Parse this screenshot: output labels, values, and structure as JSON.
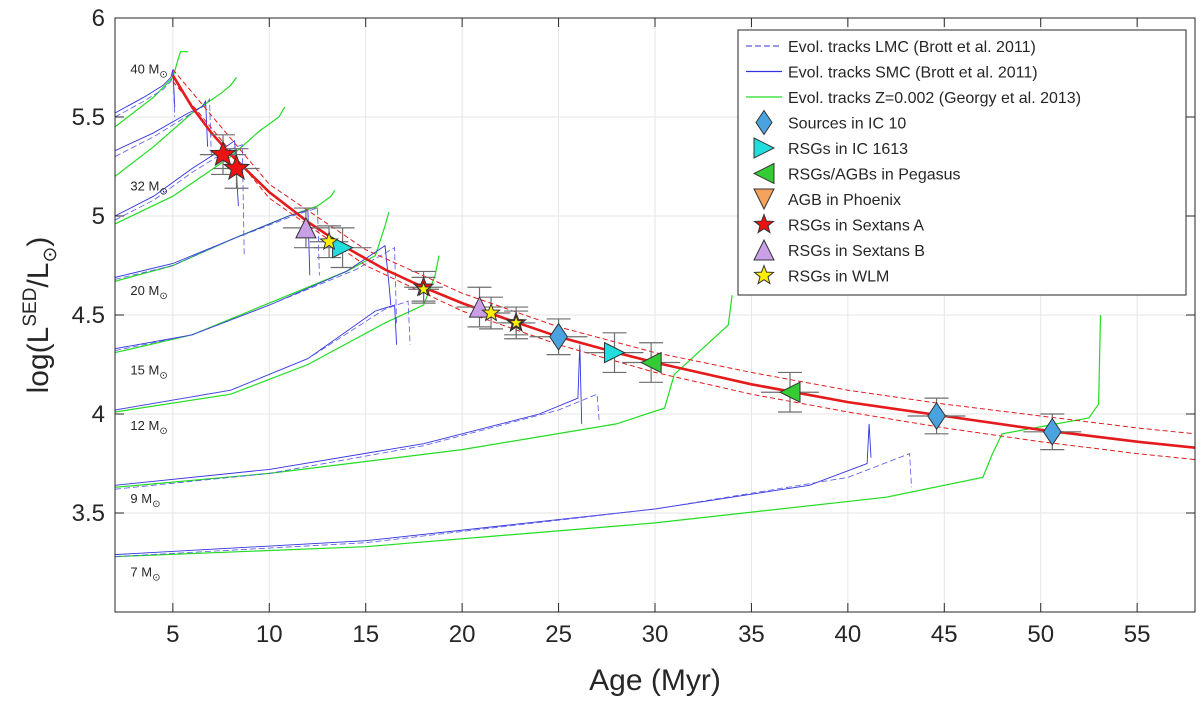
{
  "chart_data": {
    "type": "scatter",
    "title": "",
    "xlabel": "Age (Myr)",
    "ylabel_parts": {
      "main": "log(L",
      "sup": "SED",
      "sep": "/L",
      "sub": "⊙",
      "close": ")"
    },
    "xlim": [
      2,
      58
    ],
    "ylim": [
      3,
      6
    ],
    "x_ticks": [
      5,
      10,
      15,
      20,
      25,
      30,
      35,
      40,
      45,
      50,
      55
    ],
    "y_ticks": [
      3.5,
      4,
      4.5,
      5,
      5.5,
      6
    ],
    "y_tick_labels": [
      "3.5",
      "4",
      "4.5",
      "5",
      "5.5",
      "6"
    ],
    "grid": true,
    "legend_position": "top-right",
    "fit_curve": {
      "name": "",
      "color": "#e41a1c",
      "x": [
        5,
        6,
        7,
        8,
        10,
        12,
        14,
        16,
        18,
        20,
        22,
        25,
        28,
        30,
        35,
        40,
        45,
        50,
        55,
        58
      ],
      "y": [
        5.71,
        5.55,
        5.42,
        5.31,
        5.12,
        4.97,
        4.84,
        4.73,
        4.64,
        4.56,
        4.49,
        4.39,
        4.31,
        4.26,
        4.15,
        4.06,
        3.99,
        3.92,
        3.86,
        3.83
      ]
    },
    "fit_upper": {
      "x": [
        5,
        10,
        15,
        20,
        25,
        30,
        35,
        40,
        45,
        50,
        55,
        58
      ],
      "y": [
        5.74,
        5.16,
        4.83,
        4.61,
        4.44,
        4.31,
        4.21,
        4.12,
        4.05,
        3.99,
        3.93,
        3.9
      ]
    },
    "fit_lower": {
      "x": [
        5,
        10,
        15,
        20,
        25,
        30,
        35,
        40,
        45,
        50,
        55,
        58
      ],
      "y": [
        5.68,
        5.09,
        4.75,
        4.52,
        4.35,
        4.21,
        4.1,
        4.01,
        3.93,
        3.86,
        3.8,
        3.77
      ]
    },
    "mass_labels": [
      {
        "text": "40 M",
        "sub": "⊙",
        "x": 2.8,
        "y": 5.72
      },
      {
        "text": "32 M",
        "sub": "⊙",
        "x": 2.8,
        "y": 5.13
      },
      {
        "text": "20 M",
        "sub": "⊙",
        "x": 2.8,
        "y": 4.6
      },
      {
        "text": "15 M",
        "sub": "⊙",
        "x": 2.8,
        "y": 4.2
      },
      {
        "text": "12 M",
        "sub": "⊙",
        "x": 2.8,
        "y": 3.92
      },
      {
        "text": "9 M",
        "sub": "⊙",
        "x": 2.8,
        "y": 3.55
      },
      {
        "text": "7 M",
        "sub": "⊙",
        "x": 2.8,
        "y": 3.18
      }
    ],
    "tracks_green": [
      {
        "x": [
          2,
          4,
          5,
          5.3,
          5.4,
          5.8
        ],
        "y": [
          5.45,
          5.6,
          5.7,
          5.8,
          5.83,
          5.83
        ]
      },
      {
        "x": [
          2,
          4,
          6,
          7.5,
          8,
          8.3
        ],
        "y": [
          5.2,
          5.35,
          5.52,
          5.62,
          5.66,
          5.7
        ]
      },
      {
        "x": [
          2,
          5,
          8,
          9.5,
          10.5,
          10.8
        ],
        "y": [
          4.96,
          5.1,
          5.3,
          5.43,
          5.5,
          5.55
        ]
      },
      {
        "x": [
          2,
          5,
          8,
          11,
          12.5,
          13.2,
          13.4
        ],
        "y": [
          4.67,
          4.75,
          4.88,
          5.0,
          5.05,
          5.1,
          5.13
        ]
      },
      {
        "x": [
          2,
          6,
          10,
          14,
          15.5,
          16,
          16.2
        ],
        "y": [
          4.31,
          4.4,
          4.56,
          4.72,
          4.8,
          4.95,
          5.02
        ]
      },
      {
        "x": [
          2,
          8,
          12,
          16,
          18,
          18.6,
          18.8
        ],
        "y": [
          4.01,
          4.1,
          4.25,
          4.46,
          4.55,
          4.7,
          4.8
        ]
      },
      {
        "x": [
          2,
          10,
          20,
          28,
          30.5,
          31,
          33.8,
          34
        ],
        "y": [
          3.63,
          3.7,
          3.82,
          3.95,
          4.03,
          4.2,
          4.45,
          4.6
        ]
      },
      {
        "x": [
          2,
          15,
          30,
          42,
          47,
          47.5,
          48,
          52.5,
          53,
          53.1
        ],
        "y": [
          3.28,
          3.33,
          3.45,
          3.58,
          3.68,
          3.8,
          3.9,
          3.98,
          4.05,
          4.5
        ]
      }
    ],
    "tracks_blue": [
      {
        "x": [
          2,
          3.5,
          4.5,
          4.9,
          5.0,
          5.1
        ],
        "y": [
          5.52,
          5.6,
          5.66,
          5.7,
          5.74,
          5.55
        ]
      },
      {
        "x": [
          2,
          4,
          5.8,
          6.5,
          6.7,
          6.8
        ],
        "y": [
          5.33,
          5.42,
          5.52,
          5.55,
          5.58,
          5.35
        ]
      },
      {
        "x": [
          2,
          4,
          6,
          7.6,
          8.2,
          8.4
        ],
        "y": [
          5.0,
          5.1,
          5.24,
          5.34,
          5.38,
          5.05
        ]
      },
      {
        "x": [
          2,
          5,
          8,
          11,
          12,
          12.1
        ],
        "y": [
          4.69,
          4.76,
          4.88,
          5.0,
          5.03,
          4.7
        ]
      },
      {
        "x": [
          2,
          6,
          10,
          14,
          16,
          16.2,
          16.3
        ],
        "y": [
          4.33,
          4.4,
          4.55,
          4.72,
          4.85,
          4.66,
          4.55
        ]
      },
      {
        "x": [
          2,
          8,
          12,
          15.5,
          16.5,
          16.6
        ],
        "y": [
          4.02,
          4.12,
          4.28,
          4.52,
          4.55,
          4.35
        ]
      },
      {
        "x": [
          2,
          10,
          18,
          24,
          26,
          26.1,
          26.2
        ],
        "y": [
          3.64,
          3.72,
          3.85,
          4.0,
          4.08,
          4.35,
          3.95
        ]
      },
      {
        "x": [
          2,
          15,
          30,
          38,
          41,
          41.1,
          41.2
        ],
        "y": [
          3.29,
          3.36,
          3.52,
          3.64,
          3.75,
          3.95,
          3.78
        ]
      }
    ],
    "tracks_blue_dashed": [
      {
        "x": [
          2,
          3.5,
          4.5,
          4.9,
          5.0,
          5.1
        ],
        "y": [
          5.5,
          5.58,
          5.64,
          5.68,
          5.72,
          5.5
        ]
      },
      {
        "x": [
          2,
          4,
          6,
          6.7,
          6.9,
          7.0
        ],
        "y": [
          5.3,
          5.4,
          5.52,
          5.56,
          5.59,
          5.3
        ]
      },
      {
        "x": [
          2,
          4,
          6,
          7.8,
          8.6,
          8.7
        ],
        "y": [
          4.98,
          5.08,
          5.22,
          5.33,
          5.36,
          4.8
        ]
      },
      {
        "x": [
          2,
          5,
          8,
          11.5,
          12.5,
          12.6
        ],
        "y": [
          4.68,
          4.75,
          4.88,
          5.01,
          5.04,
          4.7
        ]
      },
      {
        "x": [
          2,
          6,
          10,
          14.5,
          16.5,
          16.6
        ],
        "y": [
          4.32,
          4.4,
          4.55,
          4.73,
          4.84,
          4.45
        ]
      },
      {
        "x": [
          2,
          8,
          12,
          16,
          17.2,
          17.3
        ],
        "y": [
          4.02,
          4.12,
          4.28,
          4.53,
          4.57,
          4.35
        ]
      },
      {
        "x": [
          2,
          10,
          18,
          25,
          27,
          27.1
        ],
        "y": [
          3.62,
          3.7,
          3.84,
          4.02,
          4.1,
          3.97
        ]
      },
      {
        "x": [
          2,
          15,
          30,
          40,
          43.2,
          43.3
        ],
        "y": [
          3.28,
          3.35,
          3.52,
          3.68,
          3.8,
          3.63
        ]
      }
    ],
    "legend": [
      {
        "label": "Evol. tracks LMC (Brott et al. 2011)",
        "marker": "dash-line",
        "color": "#3333dd"
      },
      {
        "label": "Evol. tracks SMC (Brott et al. 2011)",
        "marker": "line",
        "color": "#3333dd"
      },
      {
        "label": "Evol. tracks Z=0.002 (Georgy et al. 2013)",
        "marker": "line",
        "color": "#22dd22"
      },
      {
        "label": "Sources in IC 10",
        "marker": "diamond",
        "color": "#4aa3df"
      },
      {
        "label": "RSGs in IC 1613",
        "marker": "triangle-right",
        "color": "#22dddd"
      },
      {
        "label": "RSGs/AGBs in Pegasus",
        "marker": "triangle-left",
        "color": "#33cc33"
      },
      {
        "label": "AGB in Phoenix",
        "marker": "triangle-down",
        "color": "#f5a25d"
      },
      {
        "label": "RSGs in Sextans A",
        "marker": "star",
        "color": "#ee1111"
      },
      {
        "label": "RSGs in Sextans B",
        "marker": "triangle-up",
        "color": "#c9a0e8"
      },
      {
        "label": "RSGs in WLM",
        "marker": "star",
        "color": "#ffee00"
      }
    ],
    "points": [
      {
        "series": "Sources in IC 10",
        "marker": "diamond",
        "color": "#4aa3df",
        "x": 25.0,
        "y": 4.39,
        "xerr": 1.5,
        "yerr": 0.09,
        "size": 22
      },
      {
        "series": "Sources in IC 10",
        "marker": "diamond",
        "color": "#4aa3df",
        "x": 44.6,
        "y": 3.99,
        "xerr": 1.5,
        "yerr": 0.09,
        "size": 22
      },
      {
        "series": "Sources in IC 10",
        "marker": "diamond",
        "color": "#4aa3df",
        "x": 50.6,
        "y": 3.91,
        "xerr": 1.5,
        "yerr": 0.09,
        "size": 22
      },
      {
        "series": "RSGs in IC 1613",
        "marker": "triangle-right",
        "color": "#22dddd",
        "x": 13.8,
        "y": 4.84,
        "xerr": 1.5,
        "yerr": 0.1,
        "size": 20
      },
      {
        "series": "RSGs in IC 1613",
        "marker": "triangle-right",
        "color": "#22dddd",
        "x": 27.9,
        "y": 4.31,
        "xerr": 1.5,
        "yerr": 0.1,
        "size": 20
      },
      {
        "series": "RSGs/AGBs in Pegasus",
        "marker": "triangle-left",
        "color": "#33cc33",
        "x": 29.8,
        "y": 4.26,
        "xerr": 1.5,
        "yerr": 0.1,
        "size": 20
      },
      {
        "series": "RSGs/AGBs in Pegasus",
        "marker": "triangle-left",
        "color": "#33cc33",
        "x": 37.0,
        "y": 4.11,
        "xerr": 1.5,
        "yerr": 0.1,
        "size": 20
      },
      {
        "series": "RSGs in Sextans A",
        "marker": "star",
        "color": "#ee1111",
        "x": 7.6,
        "y": 5.31,
        "xerr": 1.2,
        "yerr": 0.1,
        "size": 26
      },
      {
        "series": "RSGs in Sextans A",
        "marker": "star",
        "color": "#ee1111",
        "x": 8.3,
        "y": 5.24,
        "xerr": 1.2,
        "yerr": 0.1,
        "size": 26
      },
      {
        "series": "RSGs in Sextans A",
        "marker": "star",
        "color": "#ee1111",
        "x": 18.0,
        "y": 4.64,
        "xerr": 1.0,
        "yerr": 0.08,
        "size": 20
      },
      {
        "series": "RSGs in Sextans A",
        "marker": "star",
        "color": "#ee1111",
        "x": 22.8,
        "y": 4.46,
        "xerr": 1.0,
        "yerr": 0.08,
        "size": 20
      },
      {
        "series": "RSGs in Sextans B",
        "marker": "triangle-up",
        "color": "#c9a0e8",
        "x": 11.9,
        "y": 4.94,
        "xerr": 1.2,
        "yerr": 0.1,
        "size": 20
      },
      {
        "series": "RSGs in Sextans B",
        "marker": "triangle-up",
        "color": "#c9a0e8",
        "x": 20.9,
        "y": 4.54,
        "xerr": 1.2,
        "yerr": 0.1,
        "size": 20
      },
      {
        "series": "RSGs in WLM",
        "marker": "star",
        "color": "#ffee00",
        "x": 13.1,
        "y": 4.87,
        "xerr": 1.0,
        "yerr": 0.08,
        "size": 18
      },
      {
        "series": "RSGs in WLM",
        "marker": "star",
        "color": "#ffee00",
        "x": 18.0,
        "y": 4.63,
        "xerr": 0.8,
        "yerr": 0.06,
        "size": 14
      },
      {
        "series": "RSGs in WLM",
        "marker": "star",
        "color": "#ffee00",
        "x": 21.5,
        "y": 4.51,
        "xerr": 1.0,
        "yerr": 0.08,
        "size": 18
      },
      {
        "series": "RSGs in WLM",
        "marker": "star",
        "color": "#ffee00",
        "x": 22.8,
        "y": 4.46,
        "xerr": 0.8,
        "yerr": 0.06,
        "size": 14
      }
    ]
  }
}
